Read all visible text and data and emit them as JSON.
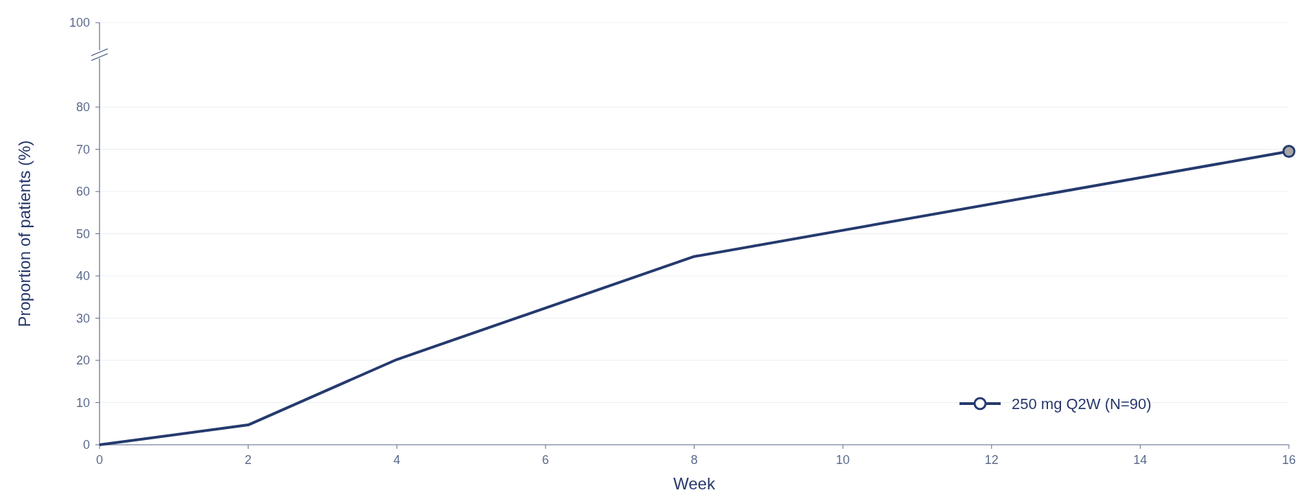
{
  "chart_data": {
    "type": "line",
    "xlabel": "Week",
    "ylabel": "Proportion of patients (%)",
    "x": [
      0,
      2,
      4,
      8,
      16
    ],
    "series": [
      {
        "name": "250 mg Q2W (N=90)",
        "color": "#253a6e",
        "values": [
          0,
          4.7,
          20.2,
          44.6,
          69.5
        ]
      },
      {
        "type": "scatter",
        "x": [
          16
        ],
        "color": "#a6a6a6",
        "values": [
          69.5
        ],
        "marker": "circle"
      }
    ],
    "xlim": [
      0,
      16
    ],
    "xticks": [
      0,
      2,
      4,
      6,
      8,
      10,
      12,
      14,
      16
    ],
    "ylim": [
      0,
      100
    ],
    "yticks": [
      0,
      10,
      20,
      30,
      40,
      50,
      60,
      70,
      80,
      100
    ],
    "grid": "y",
    "legend": "bottom right"
  }
}
